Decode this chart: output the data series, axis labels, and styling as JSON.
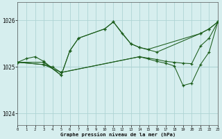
{
  "title": "Graphe pression niveau de la mer (hPa)",
  "bg": "#d6eeee",
  "grid_color": "#aed4d4",
  "line_color": "#1a5c1a",
  "ylim": [
    1023.75,
    1026.4
  ],
  "xlim": [
    0,
    23
  ],
  "yticks": [
    1024,
    1025,
    1026
  ],
  "xticks": [
    0,
    1,
    2,
    3,
    4,
    5,
    6,
    7,
    8,
    9,
    10,
    11,
    12,
    13,
    14,
    15,
    16,
    17,
    18,
    19,
    20,
    21,
    22,
    23
  ],
  "lines": [
    {
      "x": [
        0,
        3,
        5,
        6,
        7,
        10,
        11,
        13,
        14,
        16,
        21,
        22,
        23
      ],
      "y": [
        1025.1,
        1025.1,
        1024.82,
        1025.35,
        1025.62,
        1025.82,
        1025.97,
        1025.5,
        1025.42,
        1025.32,
        1025.72,
        1025.82,
        1025.97
      ]
    },
    {
      "x": [
        0,
        1,
        2,
        3,
        5,
        6,
        7,
        10,
        11,
        12,
        13,
        14,
        15,
        21,
        22,
        23
      ],
      "y": [
        1025.1,
        1025.18,
        1025.22,
        1025.12,
        1024.82,
        1025.35,
        1025.62,
        1025.82,
        1025.97,
        1025.72,
        1025.5,
        1025.42,
        1025.38,
        1025.72,
        1025.82,
        1025.97
      ]
    },
    {
      "x": [
        0,
        3,
        4,
        5,
        14,
        15,
        16,
        17,
        18,
        19,
        20,
        21,
        22,
        23
      ],
      "y": [
        1025.1,
        1025.05,
        1025.0,
        1024.88,
        1025.22,
        1025.19,
        1025.16,
        1025.12,
        1025.1,
        1025.08,
        1025.07,
        1025.45,
        1025.62,
        1025.97
      ]
    },
    {
      "x": [
        0,
        3,
        5,
        14,
        16,
        17,
        18,
        19,
        20,
        21,
        22,
        23
      ],
      "y": [
        1025.1,
        1025.05,
        1024.88,
        1025.22,
        1025.12,
        1025.08,
        1025.02,
        1024.6,
        1024.65,
        1025.05,
        1025.32,
        1025.97
      ]
    }
  ],
  "hline_y": 1025.0
}
